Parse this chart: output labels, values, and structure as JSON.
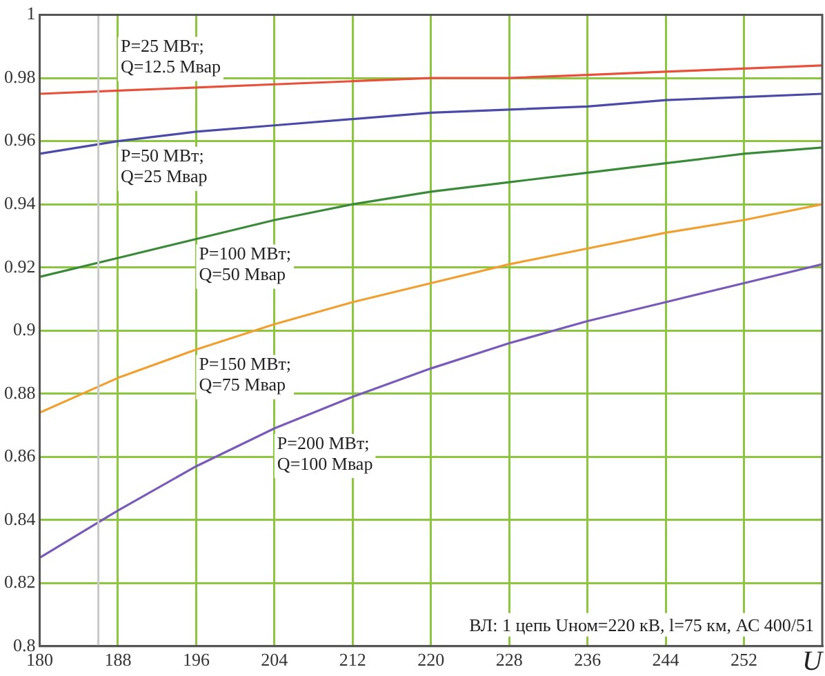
{
  "chart_data": {
    "type": "line",
    "xlabel": "U",
    "x": [
      180,
      188,
      196,
      204,
      212,
      220,
      228,
      236,
      244,
      252,
      260
    ],
    "series": [
      {
        "name": "P=25 МВт; Q=12.5 Мвар",
        "color": "#e8503a",
        "values": [
          0.975,
          0.976,
          0.977,
          0.978,
          0.979,
          0.98,
          0.98,
          0.981,
          0.982,
          0.983,
          0.984
        ]
      },
      {
        "name": "P=50 МВт; Q=25 Мвар",
        "color": "#4a4aa8",
        "values": [
          0.956,
          0.96,
          0.963,
          0.965,
          0.967,
          0.969,
          0.97,
          0.971,
          0.973,
          0.974,
          0.975
        ]
      },
      {
        "name": "P=100 МВт; Q=50 Мвар",
        "color": "#3a8a3a",
        "values": [
          0.917,
          0.923,
          0.929,
          0.935,
          0.94,
          0.944,
          0.947,
          0.95,
          0.953,
          0.956,
          0.958
        ]
      },
      {
        "name": "P=150 МВт; Q=75 Мвар",
        "color": "#f0a030",
        "values": [
          0.874,
          0.885,
          0.894,
          0.902,
          0.909,
          0.915,
          0.921,
          0.926,
          0.931,
          0.935,
          0.94
        ]
      },
      {
        "name": "P=200 МВт; Q=100 Мвар",
        "color": "#7a5ab8",
        "values": [
          0.828,
          0.843,
          0.857,
          0.869,
          0.879,
          0.888,
          0.896,
          0.903,
          0.909,
          0.915,
          0.921
        ]
      }
    ],
    "xlim": [
      180,
      260
    ],
    "xticks": [
      180,
      188,
      196,
      204,
      212,
      220,
      228,
      236,
      244,
      252
    ],
    "ylim": [
      0.8,
      1
    ],
    "yticks": [
      0.8,
      0.82,
      0.84,
      0.86,
      0.88,
      0.9,
      0.92,
      0.94,
      0.96,
      0.98,
      1
    ],
    "grid": true,
    "legend": false,
    "marker": "none",
    "line_style": "solid",
    "ref_lines": [
      {
        "axis": "x",
        "value": 186,
        "color": "#c8c8c8"
      }
    ],
    "annotations": [
      "ВЛ: 1 цепь Uном=220 кВ, l=75 км, АС 400/51"
    ]
  }
}
